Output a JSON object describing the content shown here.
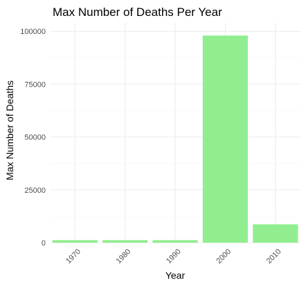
{
  "chart_data": {
    "type": "bar",
    "title": "Max Number of Deaths Per Year",
    "xlabel": "Year",
    "ylabel": "Max Number of Deaths",
    "categories": [
      "1970",
      "1980",
      "1990",
      "2000",
      "2010"
    ],
    "values": [
      1200,
      1200,
      1200,
      98000,
      8700
    ],
    "ylim": [
      0,
      104000
    ],
    "yticks": [
      0,
      25000,
      50000,
      75000,
      100000
    ],
    "ytick_labels": [
      "0",
      "25000",
      "50000",
      "75000",
      "100000"
    ],
    "grid": true,
    "legend": "none",
    "bar_color": "#90EE90",
    "grid_major_color": "#ebebeb",
    "grid_minor_color": "#f4f4f4"
  }
}
